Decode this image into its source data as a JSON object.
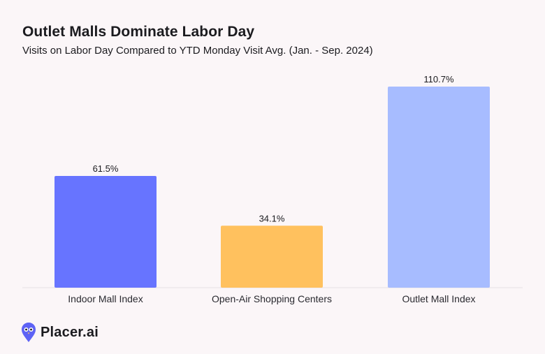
{
  "header": {
    "title": "Outlet Malls Dominate Labor Day",
    "subtitle": "Visits on Labor Day Compared to YTD Monday Visit Avg. (Jan. - Sep. 2024)"
  },
  "brand": {
    "name": "Placer.ai",
    "logo_icon": "owl-pin-icon",
    "logo_color": "#5e63f5"
  },
  "chart_data": {
    "type": "bar",
    "categories": [
      "Indoor Mall Index",
      "Open-Air Shopping Centers",
      "Outlet Mall Index"
    ],
    "values": [
      61.5,
      34.1,
      110.7
    ],
    "value_labels": [
      "61.5%",
      "34.1%",
      "110.7%"
    ],
    "colors": [
      "#6774ff",
      "#ffc15e",
      "#a7bcff"
    ],
    "ylim": [
      0,
      110.7
    ],
    "grid": false,
    "legend": "none"
  }
}
